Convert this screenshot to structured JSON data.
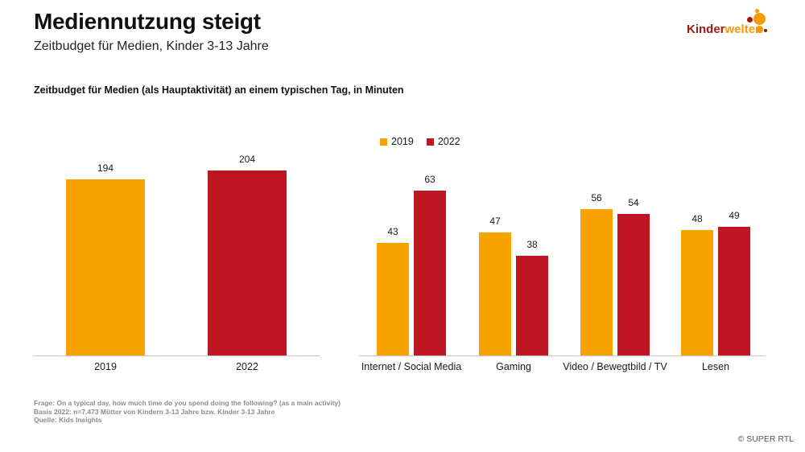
{
  "slide": {
    "title": "Mediennutzung steigt",
    "subtitle": "Zeitbudget für Medien, Kinder 3-13 Jahre",
    "chart_heading": "Zeitbudget für Medien (als Hauptaktivität) an einem typischen Tag, in Minuten",
    "footnotes": [
      "Frage: On a typical day, how much time do you spend doing the following? (as a main activity)",
      "Basis 2022: n=7.473 Mütter von Kindern 3-13 Jahre bzw. Kinder 3-13 Jahre",
      "Quelle: Kids Insights"
    ],
    "copyright": "© SUPER RTL",
    "logo": {
      "part1": "Kinder",
      "part2": "welten"
    }
  },
  "colors": {
    "orange": "#F8A200",
    "red": "#BE1622",
    "logo_red": "#9C1A0B",
    "logo_orange": "#F59C00",
    "axis_gray": "#C6C6C6",
    "footnote_gray": "#8C8C8C"
  },
  "chart_data": [
    {
      "type": "bar",
      "title": "",
      "categories": [
        "2019",
        "2022"
      ],
      "values": [
        194,
        204
      ],
      "bar_colors": [
        "#F8A200",
        "#BE1622"
      ],
      "unit": "Minuten",
      "data_labels": true,
      "y_axis": "hidden",
      "grid": false
    },
    {
      "type": "bar",
      "title": "",
      "categories": [
        "Internet / Social Media",
        "Gaming",
        "Video / Bewegtbild / TV",
        "Lesen"
      ],
      "series": [
        {
          "name": "2019",
          "color": "#F8A200",
          "values": [
            43,
            47,
            56,
            48
          ]
        },
        {
          "name": "2022",
          "color": "#BE1622",
          "values": [
            63,
            38,
            54,
            49
          ]
        }
      ],
      "unit": "Minuten",
      "legend_position": "top",
      "data_labels": true,
      "y_axis": "hidden",
      "grid": false
    }
  ]
}
